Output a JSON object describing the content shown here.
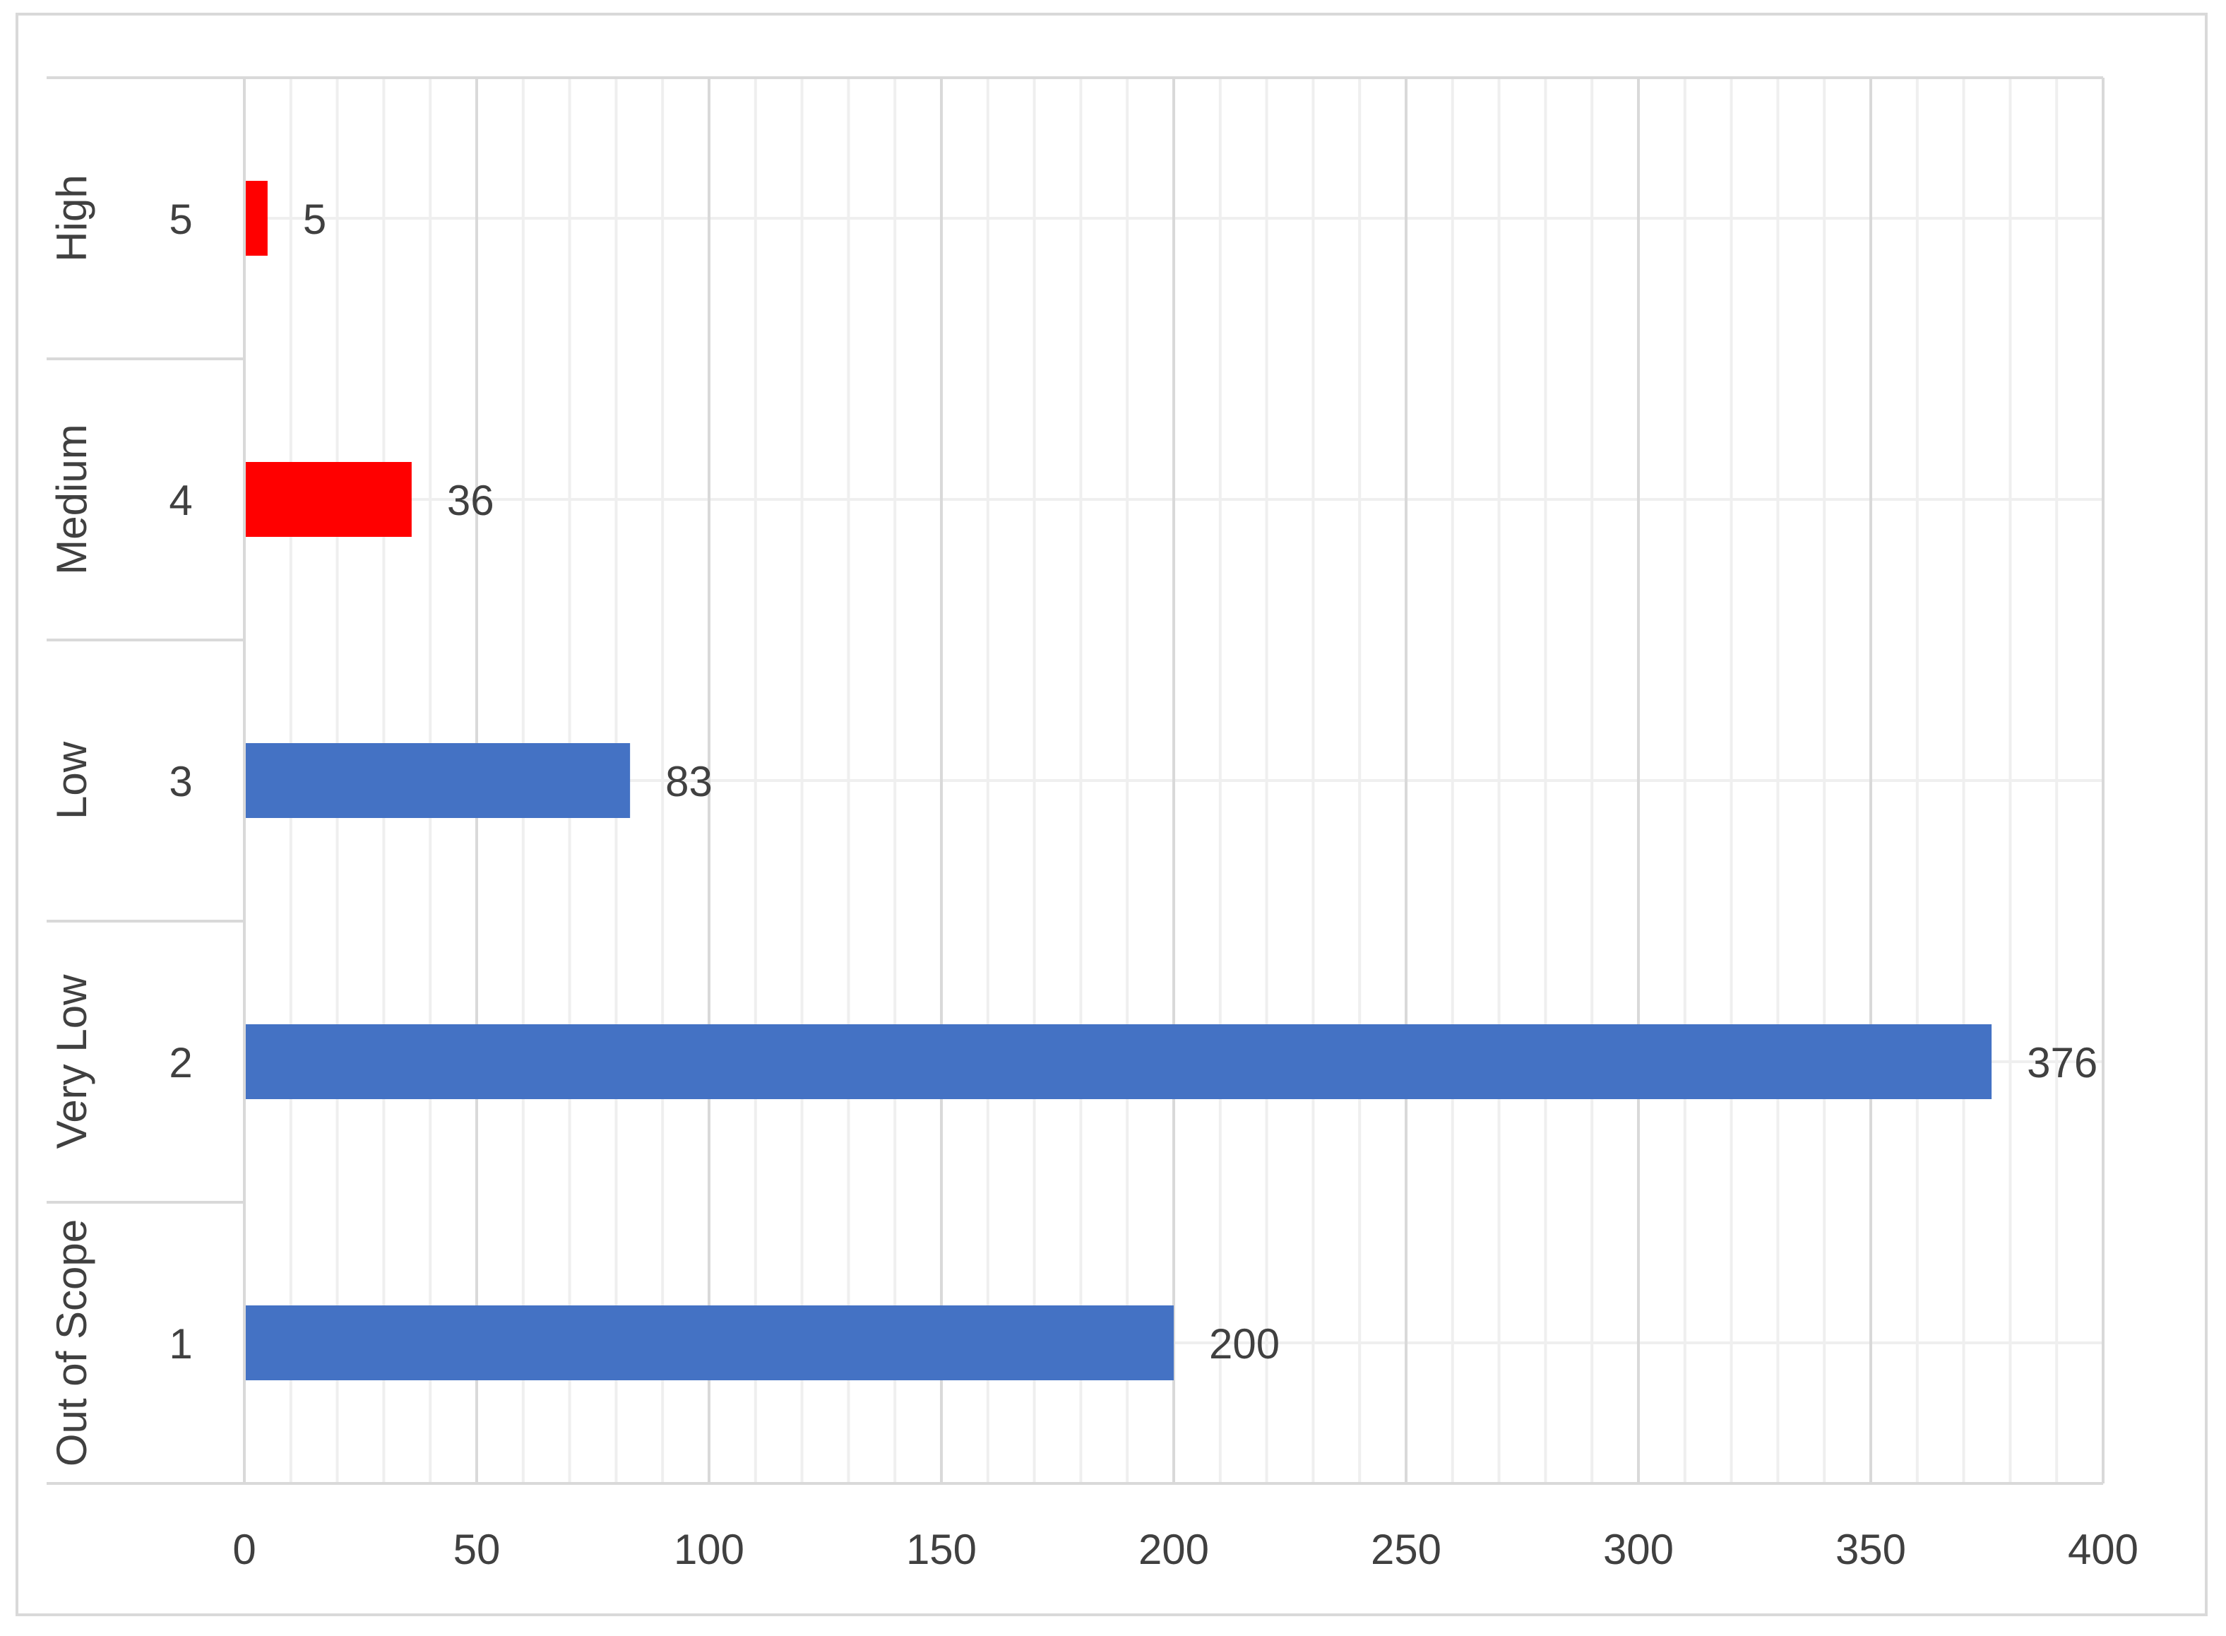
{
  "chart_data": {
    "type": "bar",
    "orientation": "horizontal",
    "categories": [
      "1",
      "2",
      "3",
      "4",
      "5"
    ],
    "group_labels": [
      "Out of Scope",
      "Very Low",
      "Low",
      "Medium",
      "High"
    ],
    "values": [
      200,
      376,
      83,
      36,
      5
    ],
    "bar_colors": [
      "#4472c4",
      "#4472c4",
      "#4472c4",
      "#ff0000",
      "#ff0000"
    ],
    "data_labels": [
      "200",
      "376",
      "83",
      "36",
      "5"
    ],
    "xlim": [
      0,
      400
    ],
    "x_ticks": [
      0,
      50,
      100,
      150,
      200,
      250,
      300,
      350,
      400
    ],
    "x_tick_labels": [
      "0",
      "50",
      "100",
      "150",
      "200",
      "250",
      "300",
      "350",
      "400"
    ],
    "minor_grid_step": 10,
    "grid": true,
    "title": "",
    "xlabel": "",
    "ylabel": "",
    "legend": "none",
    "colors": {
      "low_bar": "#4472c4",
      "high_bar": "#ff0000",
      "major_grid": "#d9d9d9",
      "minor_grid": "#efefef",
      "text": "#404040",
      "border": "#d9d9d9"
    }
  }
}
